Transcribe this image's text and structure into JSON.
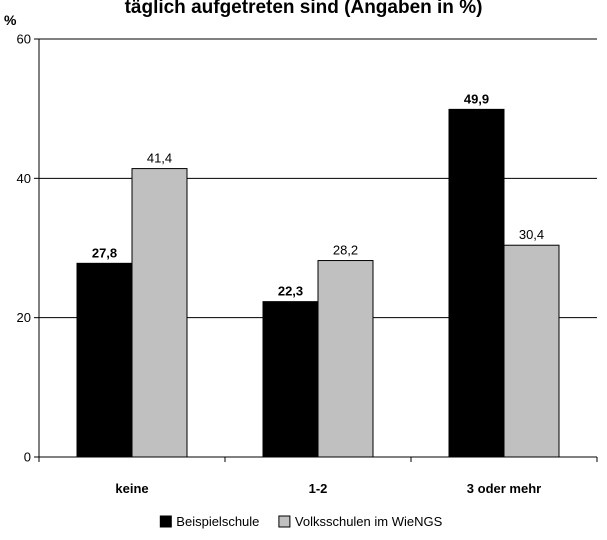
{
  "chart_data": {
    "type": "bar",
    "title": "täglich aufgetreten sind (Angaben in %)",
    "ylabel": "%",
    "xlabel": "",
    "categories": [
      "keine",
      "1-2",
      "3 oder mehr"
    ],
    "series": [
      {
        "name": "Beispielschule",
        "values": [
          27.8,
          22.3,
          49.9
        ],
        "labels": [
          "27,8",
          "22,3",
          "49,9"
        ],
        "color": "#000000"
      },
      {
        "name": "Volksschulen im WieNGS",
        "values": [
          41.4,
          28.2,
          30.4
        ],
        "labels": [
          "41,4",
          "28,2",
          "30,4"
        ],
        "color": "#c0c0c0"
      }
    ],
    "ylim": [
      0,
      60
    ],
    "yticks": [
      0,
      20,
      40,
      60
    ],
    "grid": true,
    "legend": "bottom"
  }
}
